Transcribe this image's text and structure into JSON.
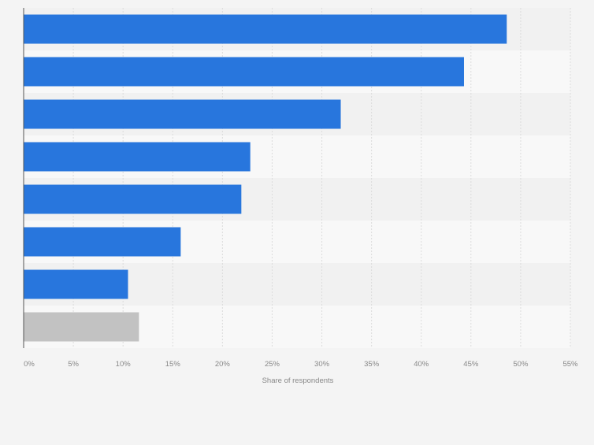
{
  "chart_data": {
    "type": "bar",
    "orientation": "horizontal",
    "categories": [
      "",
      "",
      "",
      "",
      "",
      "",
      "",
      ""
    ],
    "values": [
      48.6,
      44.3,
      31.9,
      22.8,
      21.9,
      15.8,
      10.5,
      11.6
    ],
    "x_ticks": [
      "0%",
      "5%",
      "10%",
      "15%",
      "20%",
      "25%",
      "30%",
      "35%",
      "40%",
      "45%",
      "50%",
      "55%"
    ],
    "xlabel": "Share of respondents",
    "xlim": [
      0,
      55
    ],
    "grid": true,
    "colors": {
      "bar": "#2876dd",
      "other_bar": "#c2c2c2",
      "band_dark": "#f1f1f1",
      "band_light": "#f8f8f8",
      "grid": "#dcdcdc",
      "axis": "#555555",
      "tick_text": "#888888"
    }
  }
}
